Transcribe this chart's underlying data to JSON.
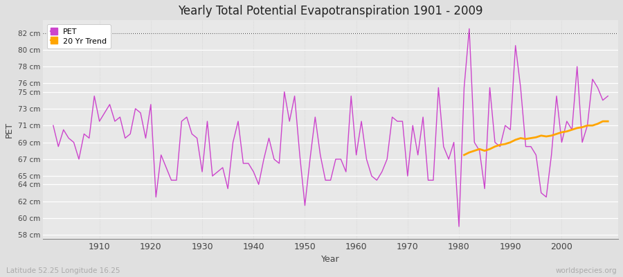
{
  "title": "Yearly Total Potential Evapotranspiration 1901 - 2009",
  "xlabel": "Year",
  "ylabel": "PET",
  "subtitle_left": "Latitude 52.25 Longitude 16.25",
  "subtitle_right": "worldspecies.org",
  "pet_color": "#cc44cc",
  "trend_color": "#ffa500",
  "fig_bg": "#e0e0e0",
  "plot_bg": "#e8e8e8",
  "ylim": [
    57.5,
    83.5
  ],
  "yticks": [
    58,
    60,
    62,
    64,
    65,
    67,
    69,
    71,
    73,
    75,
    76,
    78,
    80,
    82
  ],
  "xlim": [
    1899,
    2011
  ],
  "xticks": [
    1910,
    1920,
    1930,
    1940,
    1950,
    1960,
    1970,
    1980,
    1990,
    2000
  ],
  "years": [
    1901,
    1902,
    1903,
    1904,
    1905,
    1906,
    1907,
    1908,
    1909,
    1910,
    1911,
    1912,
    1913,
    1914,
    1915,
    1916,
    1917,
    1918,
    1919,
    1920,
    1921,
    1922,
    1923,
    1924,
    1925,
    1926,
    1927,
    1928,
    1929,
    1930,
    1931,
    1932,
    1933,
    1934,
    1935,
    1936,
    1937,
    1938,
    1939,
    1940,
    1941,
    1942,
    1943,
    1944,
    1945,
    1946,
    1947,
    1948,
    1949,
    1950,
    1951,
    1952,
    1953,
    1954,
    1955,
    1956,
    1957,
    1958,
    1959,
    1960,
    1961,
    1962,
    1963,
    1964,
    1965,
    1966,
    1967,
    1968,
    1969,
    1970,
    1971,
    1972,
    1973,
    1974,
    1975,
    1976,
    1977,
    1978,
    1979,
    1980,
    1981,
    1982,
    1983,
    1984,
    1985,
    1986,
    1987,
    1988,
    1989,
    1990,
    1991,
    1992,
    1993,
    1994,
    1995,
    1996,
    1997,
    1998,
    1999,
    2000,
    2001,
    2002,
    2003,
    2004,
    2005,
    2006,
    2007,
    2008,
    2009
  ],
  "pet": [
    71.0,
    68.5,
    70.5,
    69.5,
    69.0,
    67.0,
    70.0,
    69.5,
    74.5,
    71.5,
    72.5,
    73.5,
    71.5,
    72.0,
    69.5,
    70.0,
    73.0,
    72.5,
    69.5,
    73.5,
    62.5,
    67.5,
    66.0,
    64.5,
    64.5,
    71.5,
    72.0,
    70.0,
    69.5,
    65.5,
    71.5,
    65.0,
    65.5,
    66.0,
    63.5,
    69.0,
    71.5,
    66.5,
    66.5,
    65.5,
    64.0,
    67.0,
    69.5,
    67.0,
    66.5,
    75.0,
    71.5,
    74.5,
    67.5,
    61.5,
    67.0,
    72.0,
    67.5,
    64.5,
    64.5,
    67.0,
    67.0,
    65.5,
    74.5,
    67.5,
    71.5,
    67.0,
    65.0,
    64.5,
    65.5,
    67.0,
    72.0,
    71.5,
    71.5,
    65.0,
    71.0,
    67.5,
    72.0,
    64.5,
    64.5,
    75.5,
    68.5,
    67.0,
    69.0,
    59.0,
    75.5,
    82.5,
    69.0,
    68.0,
    63.5,
    75.5,
    69.0,
    68.5,
    71.0,
    70.5,
    80.5,
    75.5,
    68.5,
    68.5,
    67.5,
    63.0,
    62.5,
    67.5,
    74.5,
    69.0,
    71.5,
    70.5,
    78.0,
    69.0,
    71.0,
    76.5,
    75.5,
    74.0,
    74.5
  ],
  "trend_years": [
    1981,
    1982,
    1983,
    1984,
    1985,
    1986,
    1987,
    1988,
    1989,
    1990,
    1991,
    1992,
    1993,
    1994,
    1995,
    1996,
    1997,
    1998,
    1999,
    2000,
    2001,
    2002,
    2003,
    2004,
    2005,
    2006,
    2007,
    2008,
    2009
  ],
  "trend": [
    67.5,
    67.8,
    68.0,
    68.2,
    68.0,
    68.2,
    68.5,
    68.7,
    68.8,
    69.0,
    69.3,
    69.5,
    69.4,
    69.5,
    69.6,
    69.8,
    69.7,
    69.8,
    70.0,
    70.2,
    70.3,
    70.5,
    70.7,
    70.8,
    71.0,
    71.0,
    71.2,
    71.5,
    71.5
  ]
}
